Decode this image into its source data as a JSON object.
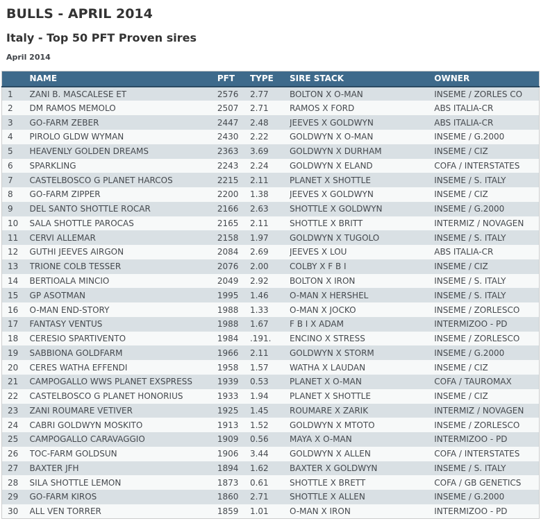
{
  "header": {
    "title": "BULLS - APRIL 2014",
    "subtitle": "Italy - Top 50 PFT Proven sires",
    "date_label": "April 2014"
  },
  "colors": {
    "header_bg": "#3e6a8b",
    "header_border": "#2b4a62",
    "row_odd": "#d9e0e4",
    "row_even": "#f7f9f9",
    "text": "#45494e"
  },
  "table": {
    "columns": [
      "",
      "NAME",
      "PFT",
      "TYPE",
      "SIRE STACK",
      "OWNER"
    ],
    "rows": [
      {
        "rank": "1",
        "name": "ZANI B. MASCALESE ET",
        "pft": "2576",
        "type": "2.77",
        "sire_stack": "BOLTON X O-MAN",
        "owner": "INSEME / ZORLES CO"
      },
      {
        "rank": "2",
        "name": "DM RAMOS MEMOLO",
        "pft": "2507",
        "type": "2.71",
        "sire_stack": "RAMOS X FORD",
        "owner": "ABS ITALIA-CR"
      },
      {
        "rank": "3",
        "name": "GO-FARM ZEBER",
        "pft": "2447",
        "type": "2.48",
        "sire_stack": "JEEVES X GOLDWYN",
        "owner": "ABS ITALIA-CR"
      },
      {
        "rank": "4",
        "name": "PIROLO GLDW WYMAN",
        "pft": "2430",
        "type": "2.22",
        "sire_stack": "GOLDWYN X O-MAN",
        "owner": "INSEME / G.2000"
      },
      {
        "rank": "5",
        "name": "HEAVENLY GOLDEN DREAMS",
        "pft": "2363",
        "type": "3.69",
        "sire_stack": "GOLDWYN X DURHAM",
        "owner": "INSEME / CIZ"
      },
      {
        "rank": "6",
        "name": "SPARKLING",
        "pft": "2243",
        "type": "2.24",
        "sire_stack": "GOLDWYN X ELAND",
        "owner": "COFA / INTERSTATES"
      },
      {
        "rank": "7",
        "name": "CASTELBOSCO G PLANET HARCOS",
        "pft": "2215",
        "type": "2.11",
        "sire_stack": "PLANET X SHOTTLE",
        "owner": "INSEME / S. ITALY"
      },
      {
        "rank": "8",
        "name": "GO-FARM ZIPPER",
        "pft": "2200",
        "type": "1.38",
        "sire_stack": "JEEVES X GOLDWYN",
        "owner": "INSEME / CIZ"
      },
      {
        "rank": "9",
        "name": "DEL SANTO SHOTTLE ROCAR",
        "pft": "2166",
        "type": "2.63",
        "sire_stack": "SHOTTLE X GOLDWYN",
        "owner": "INSEME / G.2000"
      },
      {
        "rank": "10",
        "name": "SALA SHOTTLE PAROCAS",
        "pft": "2165",
        "type": "2.11",
        "sire_stack": "SHOTTLE X BRITT",
        "owner": "INTERMIZ / NOVAGEN"
      },
      {
        "rank": "11",
        "name": "CERVI ALLEMAR",
        "pft": "2158",
        "type": "1.97",
        "sire_stack": "GOLDWYN X TUGOLO",
        "owner": "INSEME / S. ITALY"
      },
      {
        "rank": "12",
        "name": "GUTHI JEEVES AIRGON",
        "pft": "2084",
        "type": "2.69",
        "sire_stack": "JEEVES X LOU",
        "owner": "ABS ITALIA-CR"
      },
      {
        "rank": "13",
        "name": "TRIONE COLB TESSER",
        "pft": "2076",
        "type": "2.00",
        "sire_stack": "COLBY X F B I",
        "owner": "INSEME / CIZ"
      },
      {
        "rank": "14",
        "name": "BERTIOALA MINCIO",
        "pft": "2049",
        "type": "2.92",
        "sire_stack": "BOLTON X IRON",
        "owner": "INSEME / S. ITALY"
      },
      {
        "rank": "15",
        "name": "GP ASOTMAN",
        "pft": "1995",
        "type": "1.46",
        "sire_stack": "O-MAN X HERSHEL",
        "owner": "INSEME / S. ITALY"
      },
      {
        "rank": "16",
        "name": "O-MAN END-STORY",
        "pft": "1988",
        "type": "1.33",
        "sire_stack": "O-MAN X JOCKO",
        "owner": "INSEME / ZORLESCO"
      },
      {
        "rank": "17",
        "name": "FANTASY VENTUS",
        "pft": "1988",
        "type": "1.67",
        "sire_stack": "F B I X ADAM",
        "owner": "INTERMIZOO - PD"
      },
      {
        "rank": "18",
        "name": "CERESIO SPARTIVENTO",
        "pft": "1984",
        "type": ".191.",
        "sire_stack": "ENCINO X STRESS",
        "owner": "INSEME / ZORLESCO"
      },
      {
        "rank": "19",
        "name": "SABBIONA GOLDFARM",
        "pft": "1966",
        "type": "2.11",
        "sire_stack": "GOLDWYN X STORM",
        "owner": "INSEME / G.2000"
      },
      {
        "rank": "20",
        "name": "CERES WATHA EFFENDI",
        "pft": "1958",
        "type": "1.57",
        "sire_stack": "WATHA X LAUDAN",
        "owner": "INSEME / CIZ"
      },
      {
        "rank": "21",
        "name": "CAMPOGALLO WWS PLANET EXSPRESS",
        "pft": "1939",
        "type": "0.53",
        "sire_stack": "PLANET X O-MAN",
        "owner": "COFA / TAUROMAX"
      },
      {
        "rank": "22",
        "name": "CASTELBOSCO G PLANET HONORIUS",
        "pft": "1933",
        "type": "1.94",
        "sire_stack": "PLANET X SHOTTLE",
        "owner": "INSEME / CIZ"
      },
      {
        "rank": "23",
        "name": "ZANI ROUMARE VETIVER",
        "pft": "1925",
        "type": "1.45",
        "sire_stack": "ROUMARE X ZARIK",
        "owner": "INTERMIZ / NOVAGEN"
      },
      {
        "rank": "24",
        "name": "CABRI GOLDWYN MOSKITO",
        "pft": "1913",
        "type": "1.52",
        "sire_stack": "GOLDWYN X MTOTO",
        "owner": "INSEME / ZORLESCO"
      },
      {
        "rank": "25",
        "name": "CAMPOGALLO CARAVAGGIO",
        "pft": "1909",
        "type": "0.56",
        "sire_stack": "MAYA X O-MAN",
        "owner": "INTERMIZOO - PD"
      },
      {
        "rank": "26",
        "name": "TOC-FARM GOLDSUN",
        "pft": "1906",
        "type": "3.44",
        "sire_stack": "GOLDWYN X ALLEN",
        "owner": "COFA / INTERSTATES"
      },
      {
        "rank": "27",
        "name": "BAXTER JFH",
        "pft": "1894",
        "type": "1.62",
        "sire_stack": "BAXTER X GOLDWYN",
        "owner": "INSEME / S. ITALY"
      },
      {
        "rank": "28",
        "name": "SILA SHOTTLE LEMON",
        "pft": "1873",
        "type": "0.61",
        "sire_stack": "SHOTTLE X BRETT",
        "owner": "COFA / GB GENETICS"
      },
      {
        "rank": "29",
        "name": "GO-FARM KIROS",
        "pft": "1860",
        "type": "2.71",
        "sire_stack": "SHOTTLE X ALLEN",
        "owner": "INSEME / G.2000"
      },
      {
        "rank": "30",
        "name": "ALL VEN TORRER",
        "pft": "1859",
        "type": "1.01",
        "sire_stack": "O-MAN X IRON",
        "owner": "INTERMIZOO - PD"
      }
    ]
  }
}
